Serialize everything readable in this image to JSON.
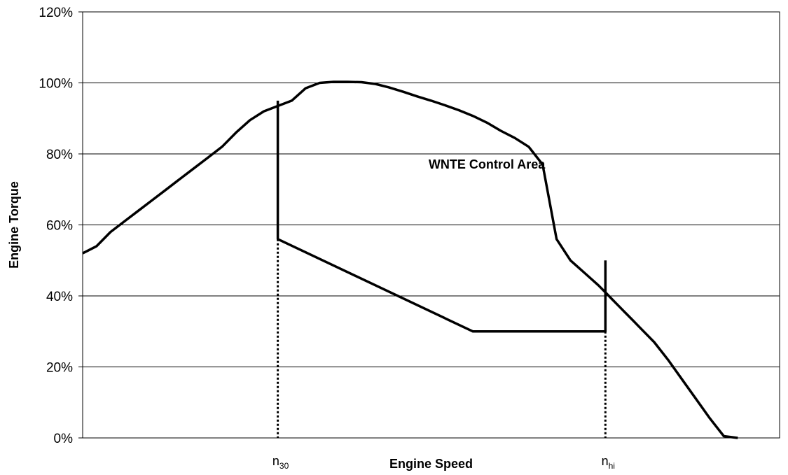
{
  "chart_data": {
    "type": "line",
    "title": "",
    "xlabel": "Engine Speed",
    "ylabel": "Engine Torque",
    "ylim": [
      0,
      120
    ],
    "y_ticks": [
      0,
      20,
      40,
      60,
      80,
      100,
      120
    ],
    "y_tick_labels": [
      "0%",
      "20%",
      "40%",
      "60%",
      "80%",
      "100%",
      "120%"
    ],
    "grid": "horizontal",
    "series": [
      {
        "style": "solid",
        "x": [
          0,
          2,
          4,
          6,
          8,
          10,
          12,
          14,
          16,
          18,
          20,
          22,
          24,
          26,
          28,
          30,
          32,
          34,
          36,
          38,
          40,
          42,
          44,
          46,
          48,
          50,
          52,
          54,
          56,
          58,
          60,
          62,
          64,
          66,
          68,
          70,
          72,
          74,
          75,
          76,
          77,
          78,
          79,
          80,
          82,
          84,
          86,
          88,
          90,
          92,
          94
        ],
        "y": [
          52,
          54,
          58,
          61,
          64,
          67,
          70,
          73,
          76,
          79,
          82,
          86,
          89.5,
          92,
          93.5,
          95,
          98.5,
          100,
          100.3,
          100.3,
          100.2,
          99.7,
          98.7,
          97.5,
          96.2,
          95,
          93.7,
          92.3,
          90.7,
          88.8,
          86.5,
          84.5,
          82,
          77,
          56,
          50,
          46.5,
          43,
          41,
          39,
          37,
          35,
          33,
          31,
          27,
          22,
          16.5,
          11,
          5.5,
          0.5,
          0
        ]
      },
      {
        "style": "solid",
        "x": [
          28,
          28,
          56,
          75,
          75
        ],
        "y": [
          95,
          56,
          30,
          30,
          50
        ]
      },
      {
        "style": "dotted",
        "x": [
          28,
          28
        ],
        "y": [
          56,
          0
        ]
      },
      {
        "style": "dotted",
        "x": [
          75,
          75
        ],
        "y": [
          30,
          0
        ]
      }
    ],
    "markers": [
      {
        "x": 28,
        "base": "n",
        "sub": "30"
      },
      {
        "x": 75,
        "base": "n",
        "sub": "hi"
      }
    ],
    "annotations": [
      {
        "text": "WNTE Control Area",
        "x": 58,
        "y": 77
      }
    ]
  }
}
